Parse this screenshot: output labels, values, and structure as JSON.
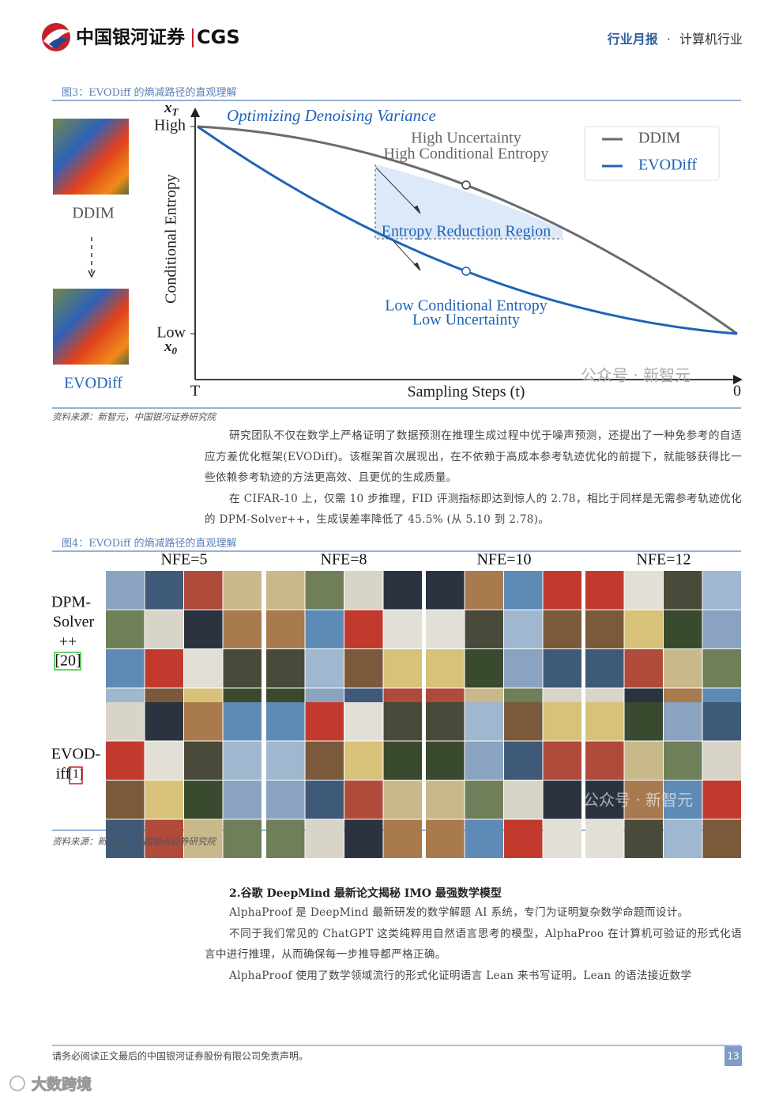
{
  "header": {
    "logo_text": "中国银河证券",
    "logo_en": "CGS",
    "report_type": "行业月报",
    "separator": "·",
    "industry": "计算机行业"
  },
  "figure3": {
    "caption": "图3：EVODiff 的熵减路径的直观理解",
    "title": "Optimizing Denoising Variance",
    "y_axis_label": "Conditional Entropy",
    "y_top": {
      "symbol": "x",
      "subscript": "T",
      "label": "High"
    },
    "y_bottom": {
      "symbol": "x",
      "subscript": "0",
      "label": "Low"
    },
    "x_start": "T",
    "x_axis_label": "Sampling Steps (t)",
    "x_end": "0",
    "annotations": {
      "high_uncertainty": "High Uncertainty",
      "high_entropy": "High Conditional Entropy",
      "region": "Entropy Reduction Region",
      "low_entropy": "Low Conditional Entropy",
      "low_uncertainty": "Low Uncertainty"
    },
    "legend": [
      "DDIM",
      "EVODiff"
    ],
    "image_labels": [
      "DDIM",
      "EVODiff"
    ],
    "watermark": "公众号 · 新智元",
    "source": "资料来源：新智元，中国银河证券研究院"
  },
  "paragraphs1": [
    "研究团队不仅在数学上严格证明了数据预测在推理生成过程中优于噪声预测，还提出了一种免参考的自适应方差优化框架(EVODiff)。该框架首次展现出，在不依赖于高成本参考轨迹优化的前提下，就能够获得比一些依赖参考轨迹的方法更高效、且更优的生成质量。",
    "在 CIFAR-10 上，仅需 10 步推理，FID 评测指标即达到惊人的 2.78，相比于同样是无需参考轨迹优化的 DPM-Solver++，生成误差率降低了 45.5% (从 5.10 到 2.78)。"
  ],
  "figure4": {
    "caption": "图4：EVODiff 的熵减路径的直观理解",
    "columns": [
      "NFE=5",
      "NFE=8",
      "NFE=10",
      "NFE=12"
    ],
    "rows": [
      {
        "lines": [
          "DPM-",
          "Solver",
          "++"
        ],
        "ref": "[20]"
      },
      {
        "lines": [
          "EVOD-",
          "iff"
        ],
        "ref": "[1]"
      }
    ],
    "watermark": "公众号 · 新智元",
    "source": "资料来源：新智元，中国银河证券研究院"
  },
  "section": {
    "heading": "2.谷歌 DeepMind 最新论文揭秘 IMO 最强数学模型",
    "paragraphs": [
      "AlphaProof 是 DeepMind 最新研发的数学解题 AI 系统，专门为证明复杂数学命题而设计。",
      "不同于我们常见的 ChatGPT 这类纯粹用自然语言思考的模型，AlphaProo 在计算机可验证的形式化语言中进行推理，从而确保每一步推导都严格正确。",
      "AlphaProof 使用了数学领域流行的形式化证明语言 Lean 来书写证明。Lean 的语法接近数学"
    ]
  },
  "footer": {
    "disclaimer": "请务必阅读正文最后的中国银河证券股份有限公司免责声明。",
    "page": "13"
  },
  "watermark": "大数跨境"
}
